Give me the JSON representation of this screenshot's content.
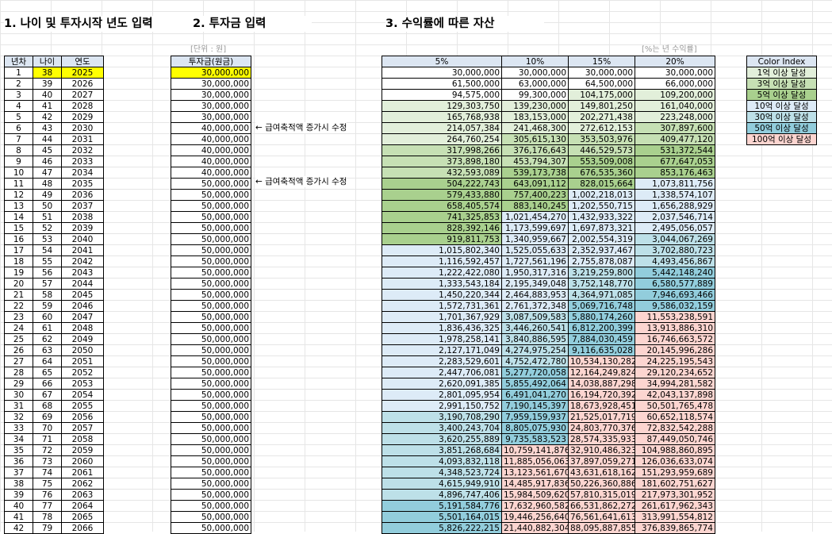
{
  "titles": {
    "section1": "1. 나이 및 투자시작 년도 입력",
    "section2": "2. 투자금 입력",
    "section3": "3. 수익률에 따른 자산"
  },
  "notes": {
    "unit": "[단위 : 원]",
    "rate": "[%는 년 수익률]"
  },
  "side_notes": [
    "← 급여축적액 증가시 수정",
    "← 급여축적액 증가시 수정"
  ],
  "table1": {
    "headers": [
      "년차",
      "나이",
      "연도"
    ]
  },
  "table2": {
    "header": "투자금(원금)"
  },
  "table3": {
    "headers": [
      "5%",
      "10%",
      "15%",
      "20%"
    ]
  },
  "color_index": {
    "title": "Color Index",
    "items": [
      {
        "label": "1억 이상 달성",
        "color": "#e2efda"
      },
      {
        "label": "3억 이상 달성",
        "color": "#c6e0b4"
      },
      {
        "label": "5억 이상 달성",
        "color": "#a9d08e"
      },
      {
        "label": "10억 이상 달성",
        "color": "#ddebf7"
      },
      {
        "label": "30억 이상 달성",
        "color": "#bde0e8"
      },
      {
        "label": "50억 이상 달성",
        "color": "#92cddc"
      },
      {
        "label": "100억 이상 달성",
        "color": "#fcd5d0"
      }
    ]
  },
  "rows": [
    {
      "n": "1",
      "age": "38",
      "year": "2025",
      "inv": "30,000,000",
      "v": [
        "30,000,000",
        "30,000,000",
        "30,000,000",
        "30,000,000"
      ]
    },
    {
      "n": "2",
      "age": "39",
      "year": "2026",
      "inv": "30,000,000",
      "v": [
        "61,500,000",
        "63,000,000",
        "64,500,000",
        "66,000,000"
      ]
    },
    {
      "n": "3",
      "age": "40",
      "year": "2027",
      "inv": "30,000,000",
      "v": [
        "94,575,000",
        "99,300,000",
        "104,175,000",
        "109,200,000"
      ]
    },
    {
      "n": "4",
      "age": "41",
      "year": "2028",
      "inv": "30,000,000",
      "v": [
        "129,303,750",
        "139,230,000",
        "149,801,250",
        "161,040,000"
      ]
    },
    {
      "n": "5",
      "age": "42",
      "year": "2029",
      "inv": "30,000,000",
      "v": [
        "165,768,938",
        "183,153,000",
        "202,271,438",
        "223,248,000"
      ]
    },
    {
      "n": "6",
      "age": "43",
      "year": "2030",
      "inv": "40,000,000",
      "v": [
        "214,057,384",
        "241,468,300",
        "272,612,153",
        "307,897,600"
      ]
    },
    {
      "n": "7",
      "age": "44",
      "year": "2031",
      "inv": "40,000,000",
      "v": [
        "264,760,254",
        "305,615,130",
        "353,503,976",
        "409,477,120"
      ]
    },
    {
      "n": "8",
      "age": "45",
      "year": "2032",
      "inv": "40,000,000",
      "v": [
        "317,998,266",
        "376,176,643",
        "446,529,573",
        "531,372,544"
      ]
    },
    {
      "n": "9",
      "age": "46",
      "year": "2033",
      "inv": "40,000,000",
      "v": [
        "373,898,180",
        "453,794,307",
        "553,509,008",
        "677,647,053"
      ]
    },
    {
      "n": "10",
      "age": "47",
      "year": "2034",
      "inv": "40,000,000",
      "v": [
        "432,593,089",
        "539,173,738",
        "676,535,360",
        "853,176,463"
      ]
    },
    {
      "n": "11",
      "age": "48",
      "year": "2035",
      "inv": "50,000,000",
      "v": [
        "504,222,743",
        "643,091,112",
        "828,015,664",
        "1,073,811,756"
      ]
    },
    {
      "n": "12",
      "age": "49",
      "year": "2036",
      "inv": "50,000,000",
      "v": [
        "579,433,880",
        "757,400,223",
        "1,002,218,013",
        "1,338,574,107"
      ]
    },
    {
      "n": "13",
      "age": "50",
      "year": "2037",
      "inv": "50,000,000",
      "v": [
        "658,405,574",
        "883,140,245",
        "1,202,550,715",
        "1,656,288,929"
      ]
    },
    {
      "n": "14",
      "age": "51",
      "year": "2038",
      "inv": "50,000,000",
      "v": [
        "741,325,853",
        "1,021,454,270",
        "1,432,933,322",
        "2,037,546,714"
      ]
    },
    {
      "n": "15",
      "age": "52",
      "year": "2039",
      "inv": "50,000,000",
      "v": [
        "828,392,146",
        "1,173,599,697",
        "1,697,873,321",
        "2,495,056,057"
      ]
    },
    {
      "n": "16",
      "age": "53",
      "year": "2040",
      "inv": "50,000,000",
      "v": [
        "919,811,753",
        "1,340,959,667",
        "2,002,554,319",
        "3,044,067,269"
      ]
    },
    {
      "n": "17",
      "age": "54",
      "year": "2041",
      "inv": "50,000,000",
      "v": [
        "1,015,802,340",
        "1,525,055,633",
        "2,352,937,467",
        "3,702,880,723"
      ]
    },
    {
      "n": "18",
      "age": "55",
      "year": "2042",
      "inv": "50,000,000",
      "v": [
        "1,116,592,457",
        "1,727,561,196",
        "2,755,878,087",
        "4,493,456,867"
      ]
    },
    {
      "n": "19",
      "age": "56",
      "year": "2043",
      "inv": "50,000,000",
      "v": [
        "1,222,422,080",
        "1,950,317,316",
        "3,219,259,800",
        "5,442,148,240"
      ]
    },
    {
      "n": "20",
      "age": "57",
      "year": "2044",
      "inv": "50,000,000",
      "v": [
        "1,333,543,184",
        "2,195,349,048",
        "3,752,148,770",
        "6,580,577,889"
      ]
    },
    {
      "n": "21",
      "age": "58",
      "year": "2045",
      "inv": "50,000,000",
      "v": [
        "1,450,220,344",
        "2,464,883,953",
        "4,364,971,085",
        "7,946,693,466"
      ]
    },
    {
      "n": "22",
      "age": "59",
      "year": "2046",
      "inv": "50,000,000",
      "v": [
        "1,572,731,361",
        "2,761,372,348",
        "5,069,716,748",
        "9,586,032,159"
      ]
    },
    {
      "n": "23",
      "age": "60",
      "year": "2047",
      "inv": "50,000,000",
      "v": [
        "1,701,367,929",
        "3,087,509,583",
        "5,880,174,260",
        "11,553,238,591"
      ]
    },
    {
      "n": "24",
      "age": "61",
      "year": "2048",
      "inv": "50,000,000",
      "v": [
        "1,836,436,325",
        "3,446,260,541",
        "6,812,200,399",
        "13,913,886,310"
      ]
    },
    {
      "n": "25",
      "age": "62",
      "year": "2049",
      "inv": "50,000,000",
      "v": [
        "1,978,258,141",
        "3,840,886,595",
        "7,884,030,459",
        "16,746,663,572"
      ]
    },
    {
      "n": "26",
      "age": "63",
      "year": "2050",
      "inv": "50,000,000",
      "v": [
        "2,127,171,049",
        "4,274,975,254",
        "9,116,635,028",
        "20,145,996,286"
      ]
    },
    {
      "n": "27",
      "age": "64",
      "year": "2051",
      "inv": "50,000,000",
      "v": [
        "2,283,529,601",
        "4,752,472,780",
        "10,534,130,282",
        "24,225,195,543"
      ]
    },
    {
      "n": "28",
      "age": "65",
      "year": "2052",
      "inv": "50,000,000",
      "v": [
        "2,447,706,081",
        "5,277,720,058",
        "12,164,249,824",
        "29,120,234,652"
      ]
    },
    {
      "n": "29",
      "age": "66",
      "year": "2053",
      "inv": "50,000,000",
      "v": [
        "2,620,091,385",
        "5,855,492,064",
        "14,038,887,298",
        "34,994,281,582"
      ]
    },
    {
      "n": "30",
      "age": "67",
      "year": "2054",
      "inv": "50,000,000",
      "v": [
        "2,801,095,954",
        "6,491,041,270",
        "16,194,720,392",
        "42,043,137,898"
      ]
    },
    {
      "n": "31",
      "age": "68",
      "year": "2055",
      "inv": "50,000,000",
      "v": [
        "2,991,150,752",
        "7,190,145,397",
        "18,673,928,451",
        "50,501,765,478"
      ]
    },
    {
      "n": "32",
      "age": "69",
      "year": "2056",
      "inv": "50,000,000",
      "v": [
        "3,190,708,290",
        "7,959,159,937",
        "21,525,017,719",
        "60,652,118,574"
      ]
    },
    {
      "n": "33",
      "age": "70",
      "year": "2057",
      "inv": "50,000,000",
      "v": [
        "3,400,243,704",
        "8,805,075,930",
        "24,803,770,376",
        "72,832,542,288"
      ]
    },
    {
      "n": "34",
      "age": "71",
      "year": "2058",
      "inv": "50,000,000",
      "v": [
        "3,620,255,889",
        "9,735,583,523",
        "28,574,335,933",
        "87,449,050,746"
      ]
    },
    {
      "n": "35",
      "age": "72",
      "year": "2059",
      "inv": "50,000,000",
      "v": [
        "3,851,268,684",
        "10,759,141,876",
        "32,910,486,323",
        "104,988,860,895"
      ]
    },
    {
      "n": "36",
      "age": "73",
      "year": "2060",
      "inv": "50,000,000",
      "v": [
        "4,093,832,118",
        "11,885,056,063",
        "37,897,059,271",
        "126,036,633,074"
      ]
    },
    {
      "n": "37",
      "age": "74",
      "year": "2061",
      "inv": "50,000,000",
      "v": [
        "4,348,523,724",
        "13,123,561,670",
        "43,631,618,162",
        "151,293,959,689"
      ]
    },
    {
      "n": "38",
      "age": "75",
      "year": "2062",
      "inv": "50,000,000",
      "v": [
        "4,615,949,910",
        "14,485,917,836",
        "50,226,360,886",
        "181,602,751,627"
      ]
    },
    {
      "n": "39",
      "age": "76",
      "year": "2063",
      "inv": "50,000,000",
      "v": [
        "4,896,747,406",
        "15,984,509,620",
        "57,810,315,019",
        "217,973,301,952"
      ]
    },
    {
      "n": "40",
      "age": "77",
      "year": "2064",
      "inv": "50,000,000",
      "v": [
        "5,191,584,776",
        "17,632,960,582",
        "66,531,862,272",
        "261,617,962,343"
      ]
    },
    {
      "n": "41",
      "age": "78",
      "year": "2065",
      "inv": "50,000,000",
      "v": [
        "5,501,164,015",
        "19,446,256,640",
        "76,561,641,613",
        "313,991,554,812"
      ]
    },
    {
      "n": "42",
      "age": "79",
      "year": "2066",
      "inv": "50,000,000",
      "v": [
        "5,826,222,215",
        "21,440,882,304",
        "88,095,887,855",
        "376,839,865,774"
      ]
    }
  ]
}
